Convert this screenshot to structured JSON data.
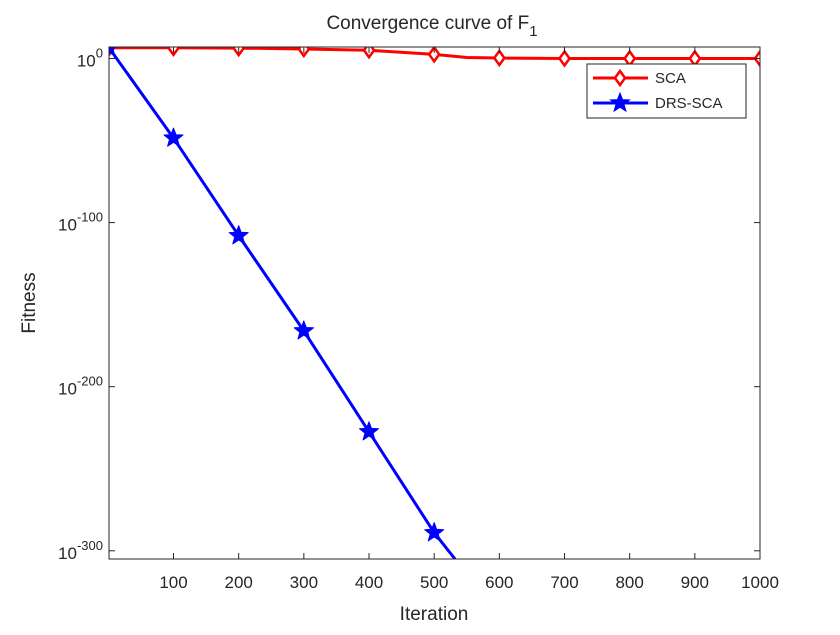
{
  "chart_data": {
    "type": "line",
    "title": "Convergence curve of F",
    "title_subscript": "1",
    "xlabel": "Iteration",
    "ylabel": "Fitness",
    "xlim": [
      1,
      1000
    ],
    "ylim_log10": [
      -305,
      7
    ],
    "yscale": "log",
    "x_ticks": [
      100,
      200,
      300,
      400,
      500,
      600,
      700,
      800,
      900,
      1000
    ],
    "x_tick_labels": [
      "100",
      "200",
      "300",
      "400",
      "500",
      "600",
      "700",
      "800",
      "900",
      "1000"
    ],
    "y_ticks_log10": [
      0,
      -100,
      -200,
      -300
    ],
    "y_tick_labels": [
      {
        "base": "10",
        "exp": "0"
      },
      {
        "base": "10",
        "exp": "-100"
      },
      {
        "base": "10",
        "exp": "-200"
      },
      {
        "base": "10",
        "exp": "-300"
      }
    ],
    "legend_position": "top-right",
    "series": [
      {
        "name": "SCA",
        "color": "#ff0000",
        "marker": "diamond",
        "x": [
          1,
          100,
          200,
          300,
          400,
          500,
          550,
          600,
          700,
          800,
          900,
          1000
        ],
        "log10y": [
          6.5,
          6.5,
          6.3,
          5.8,
          5.0,
          2.5,
          0.6,
          0.3,
          0.0,
          0.0,
          0.0,
          0.0
        ],
        "marker_x": [
          1,
          100,
          200,
          300,
          400,
          500,
          600,
          700,
          800,
          900,
          1000
        ]
      },
      {
        "name": "DRS-SCA",
        "color": "#0000ff",
        "marker": "star",
        "x": [
          1,
          100,
          200,
          300,
          400,
          500,
          532
        ],
        "log10y": [
          6.5,
          -48.5,
          -108,
          -166,
          -227.5,
          -289,
          -305
        ],
        "marker_x": [
          1,
          100,
          200,
          300,
          400,
          500
        ]
      }
    ]
  }
}
